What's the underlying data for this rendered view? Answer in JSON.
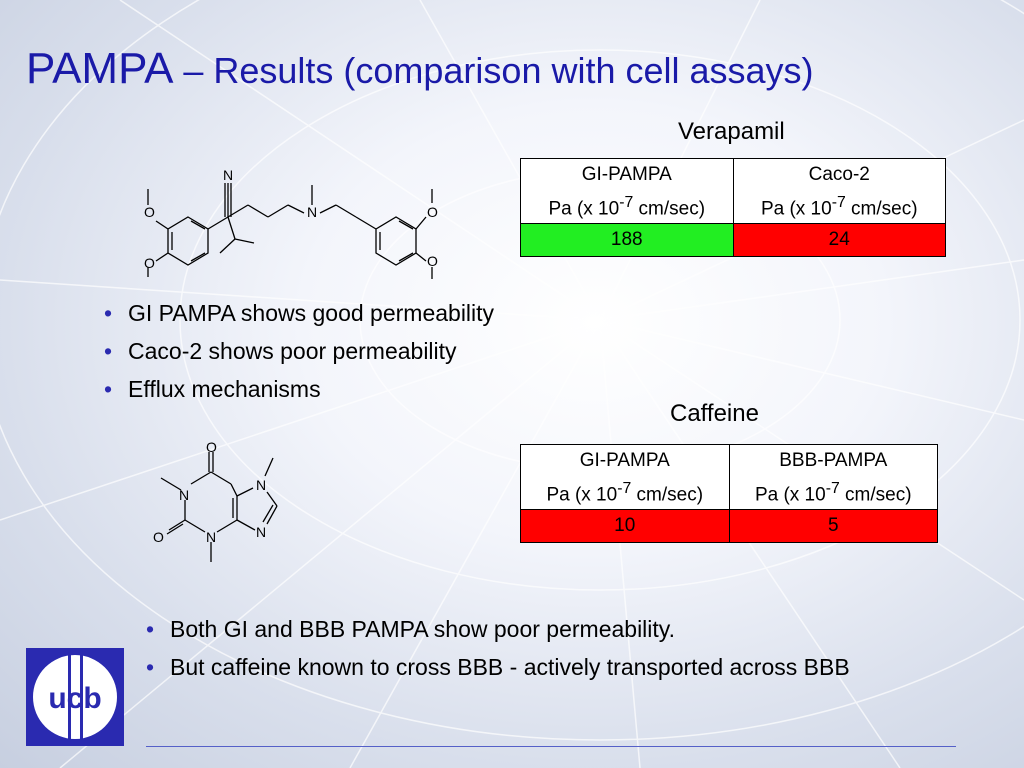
{
  "slide": {
    "title_main": "PAMPA",
    "title_sub": "– Results (comparison with cell assays)"
  },
  "verapamil": {
    "caption": "Verapamil",
    "col1_header": "GI-PAMPA",
    "col2_header": "Caco-2",
    "unit_prefix": "Pa (x 10",
    "unit_exp": "-7",
    "unit_suffix": " cm/sec)",
    "col1_value": "188",
    "col2_value": "24"
  },
  "caffeine": {
    "caption": "Caffeine",
    "col1_header": "GI-PAMPA",
    "col2_header": "BBB-PAMPA",
    "unit_prefix": "Pa (x 10",
    "unit_exp": "-7",
    "unit_suffix": " cm/sec)",
    "col1_value": "10",
    "col2_value": "5"
  },
  "bullets_top": [
    "GI PAMPA shows good permeability",
    "Caco-2 shows poor permeability",
    "Efflux mechanisms"
  ],
  "bullets_bottom": [
    "Both GI and BBB PAMPA show poor permeability.",
    "But caffeine known to cross BBB - actively transported across BBB"
  ],
  "molecules": {
    "atom_n": "N",
    "atom_o": "O"
  },
  "logo": {
    "text": "ucb"
  },
  "colors": {
    "title": "#1a1aa8",
    "good": "#22ee22",
    "bad": "#ff0000",
    "logo": "#2a2ab0"
  }
}
